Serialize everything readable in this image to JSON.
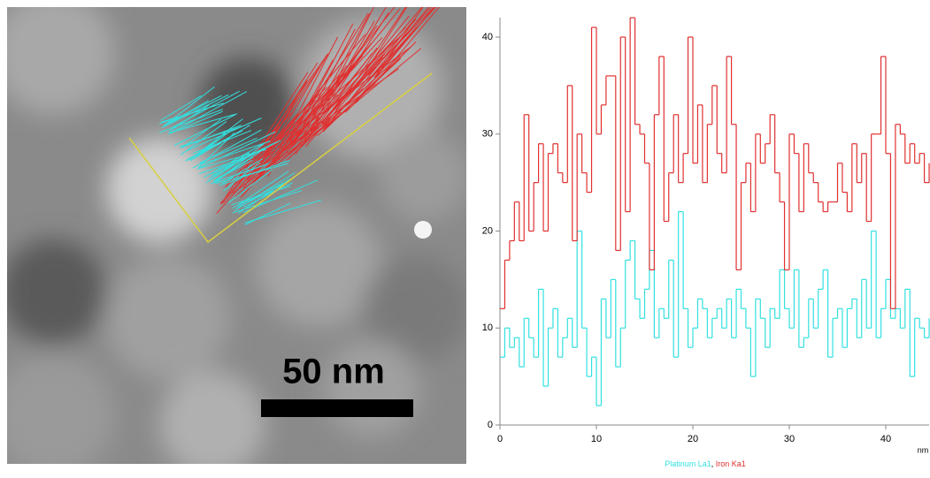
{
  "image": {
    "scale_bar": "50 nm"
  },
  "chart_data": {
    "type": "step",
    "x_label": "nm",
    "x": [
      0,
      0.5,
      1,
      1.5,
      2,
      2.5,
      3,
      3.5,
      4,
      4.5,
      5,
      5.5,
      6,
      6.5,
      7,
      7.5,
      8,
      8.5,
      9,
      9.5,
      10,
      10.5,
      11,
      11.5,
      12,
      12.5,
      13,
      13.5,
      14,
      14.5,
      15,
      15.5,
      16,
      16.5,
      17,
      17.5,
      18,
      18.5,
      19,
      19.5,
      20,
      20.5,
      21,
      21.5,
      22,
      22.5,
      23,
      23.5,
      24,
      24.5,
      25,
      25.5,
      26,
      26.5,
      27,
      27.5,
      28,
      28.5,
      29,
      29.5,
      30,
      30.5,
      31,
      31.5,
      32,
      32.5,
      33,
      33.5,
      34,
      34.5,
      35,
      35.5,
      36,
      36.5,
      37,
      37.5,
      38,
      38.5,
      39,
      39.5,
      40,
      40.5,
      41,
      41.5,
      42,
      42.5,
      43,
      43.5,
      44,
      44.5
    ],
    "series": [
      {
        "name": "Platinum La1",
        "color": "#33e0e0",
        "values": [
          7,
          10,
          8,
          9,
          6,
          11,
          9,
          7,
          14,
          4,
          10,
          12,
          7,
          9,
          11,
          8,
          20,
          10,
          5,
          7,
          2,
          13,
          9,
          15,
          6,
          10,
          17,
          19,
          13,
          11,
          14,
          18,
          9,
          12,
          11,
          17,
          7,
          22,
          12,
          8,
          10,
          13,
          12,
          9,
          11,
          12,
          10,
          13,
          9,
          14,
          12,
          10,
          5,
          13,
          11,
          8,
          12,
          11,
          16,
          12,
          10,
          16,
          8,
          9,
          13,
          10,
          14,
          16,
          7,
          11,
          12,
          8,
          12,
          13,
          9,
          15,
          10,
          20,
          9,
          12,
          15,
          11,
          12,
          10,
          14,
          5,
          11,
          10,
          9,
          11
        ]
      },
      {
        "name": "Iron Ka1",
        "color": "#e03030",
        "values": [
          12,
          17,
          19,
          23,
          19,
          32,
          20,
          25,
          29,
          20,
          28,
          29,
          26,
          25,
          35,
          19,
          30,
          26,
          24,
          41,
          30,
          33,
          36,
          36,
          18,
          40,
          22,
          42,
          31,
          30,
          27,
          16,
          32,
          38,
          21,
          26,
          32,
          25,
          28,
          40,
          27,
          33,
          25,
          31,
          35,
          28,
          26,
          38,
          31,
          16,
          25,
          27,
          22,
          30,
          27,
          29,
          32,
          26,
          23,
          16,
          30,
          28,
          22,
          29,
          26,
          25,
          23,
          22,
          23,
          23,
          27,
          24,
          22,
          29,
          25,
          28,
          21,
          30,
          30,
          38,
          28,
          12,
          31,
          30,
          27,
          29,
          27,
          28,
          25,
          27
        ]
      }
    ],
    "xlim": [
      0,
      44.5
    ],
    "xticks": [
      0,
      10,
      20,
      30,
      40
    ],
    "ylim": [
      0,
      42
    ],
    "yticks": [
      0,
      10,
      20,
      30,
      40
    ]
  }
}
